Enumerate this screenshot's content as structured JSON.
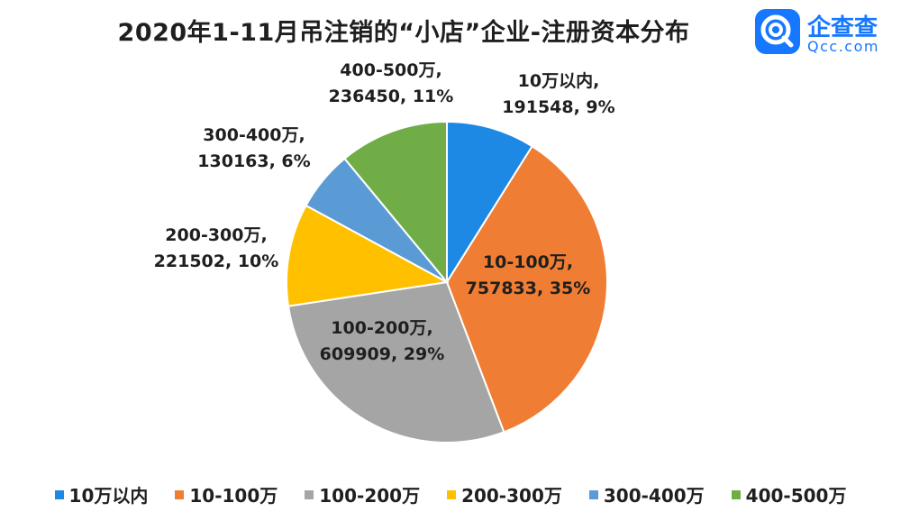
{
  "title": "2020年1-11月吊注销的“小店”企业-注册资本分布",
  "logo": {
    "name": "企查查",
    "domain": "Qcc.com",
    "color": "#1677ff"
  },
  "chart_data": {
    "type": "pie",
    "title": "2020年1-11月吊注销的“小店”企业-注册资本分布",
    "legend_position": "bottom",
    "slices": [
      {
        "label": "10万以内",
        "value": 191548,
        "percent": "9%",
        "color": "#1e88e5"
      },
      {
        "label": "10-100万",
        "value": 757833,
        "percent": "35%",
        "color": "#ef7d33"
      },
      {
        "label": "100-200万",
        "value": 609909,
        "percent": "29%",
        "color": "#a5a5a5"
      },
      {
        "label": "200-300万",
        "value": 221502,
        "percent": "10%",
        "color": "#ffc000"
      },
      {
        "label": "300-400万",
        "value": 130163,
        "percent": "6%",
        "color": "#5b9bd5"
      },
      {
        "label": "400-500万",
        "value": 236450,
        "percent": "11%",
        "color": "#70ad47"
      }
    ]
  }
}
